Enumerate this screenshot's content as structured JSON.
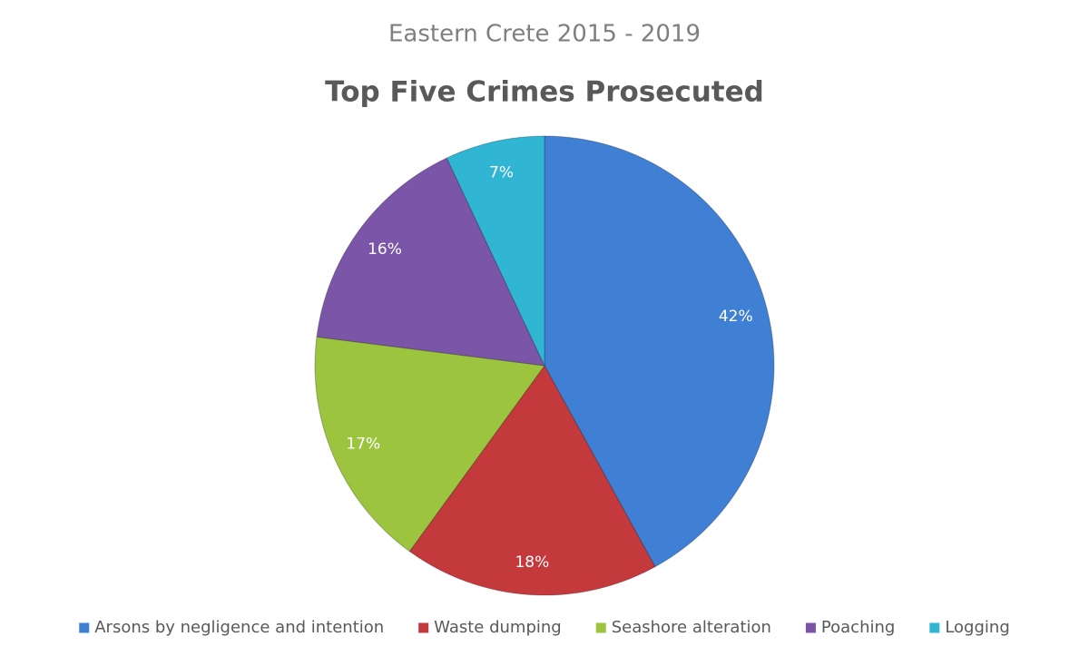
{
  "chart_data": {
    "type": "pie",
    "subtitle": "Eastern Crete 2015 - 2019",
    "title": "Top Five Crimes Prosecuted",
    "categories": [
      "Arsons by negligence and intention",
      "Waste dumping",
      "Seashore alteration",
      "Poaching",
      "Logging"
    ],
    "values": [
      42,
      18,
      17,
      16,
      7
    ],
    "value_labels": [
      "42%",
      "18%",
      "17%",
      "16%",
      "7%"
    ],
    "colors": [
      "#3f7fd4",
      "#c4393b",
      "#9cc43e",
      "#7b55a8",
      "#30b5d2"
    ],
    "legend": "bottom"
  }
}
